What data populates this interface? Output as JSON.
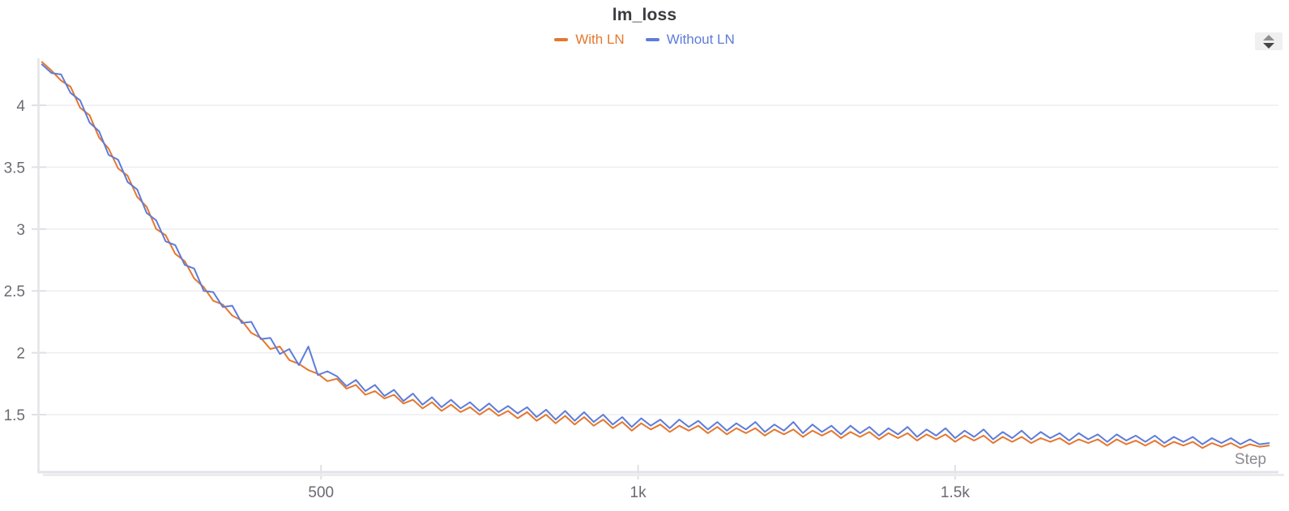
{
  "header": {
    "title": "lm_loss"
  },
  "legend": {
    "items": [
      {
        "label": "With LN",
        "color": "#e4772e"
      },
      {
        "label": "Without LN",
        "color": "#5e7cd9"
      }
    ]
  },
  "icons": {
    "stepper_up": "chevron-up",
    "stepper_down": "chevron-down"
  },
  "colors": {
    "background": "#ffffff",
    "grid": "#ededf0",
    "axis": "#e3e3e8",
    "axis_shadow": "#ececef",
    "tick_mark": "#e0e0e5",
    "tick_text": "#6a6a73",
    "title_text": "#3b3b40",
    "xlabel_text": "#8b8b92",
    "stepper_bg": "#f0f0f1",
    "stepper_up": "#8f8f8f",
    "stepper_down": "#454545"
  },
  "chart_data": {
    "type": "line",
    "title": "lm_loss",
    "xlabel": "Step",
    "ylabel": "",
    "grid": "horizontal",
    "legend_position": "top-center",
    "x_range": [
      55,
      2010
    ],
    "y_range": [
      1.035,
      4.38
    ],
    "x_ticks": [
      {
        "v": 500,
        "label": "500"
      },
      {
        "v": 1000,
        "label": "1k"
      },
      {
        "v": 1500,
        "label": "1.5k"
      }
    ],
    "y_ticks": [
      {
        "v": 1.5,
        "label": "1.5"
      },
      {
        "v": 2,
        "label": "2"
      },
      {
        "v": 2.5,
        "label": "2.5"
      },
      {
        "v": 3,
        "label": "3"
      },
      {
        "v": 3.5,
        "label": "3.5"
      },
      {
        "v": 4,
        "label": "4"
      }
    ],
    "x": [
      60,
      75,
      90,
      105,
      120,
      135,
      150,
      165,
      180,
      195,
      210,
      225,
      240,
      255,
      270,
      285,
      300,
      315,
      330,
      345,
      360,
      375,
      390,
      405,
      420,
      435,
      450,
      465,
      480,
      495,
      510,
      525,
      540,
      555,
      570,
      585,
      600,
      615,
      630,
      645,
      660,
      675,
      690,
      705,
      720,
      735,
      750,
      765,
      780,
      795,
      810,
      825,
      840,
      855,
      870,
      885,
      900,
      915,
      930,
      945,
      960,
      975,
      990,
      1005,
      1020,
      1035,
      1050,
      1065,
      1080,
      1095,
      1110,
      1125,
      1140,
      1155,
      1170,
      1185,
      1200,
      1215,
      1230,
      1245,
      1260,
      1275,
      1290,
      1305,
      1320,
      1335,
      1350,
      1365,
      1380,
      1395,
      1410,
      1425,
      1440,
      1455,
      1470,
      1485,
      1500,
      1515,
      1530,
      1545,
      1560,
      1575,
      1590,
      1605,
      1620,
      1635,
      1650,
      1665,
      1680,
      1695,
      1710,
      1725,
      1740,
      1755,
      1770,
      1785,
      1800,
      1815,
      1830,
      1845,
      1860,
      1875,
      1890,
      1905,
      1920,
      1935,
      1950,
      1965,
      1980,
      1995
    ],
    "series": [
      {
        "name": "With LN",
        "color": "#e4772e",
        "values": [
          4.35,
          4.28,
          4.2,
          4.15,
          3.98,
          3.92,
          3.74,
          3.65,
          3.49,
          3.43,
          3.26,
          3.18,
          3.0,
          2.95,
          2.8,
          2.74,
          2.6,
          2.53,
          2.42,
          2.39,
          2.3,
          2.26,
          2.16,
          2.12,
          2.03,
          2.05,
          1.94,
          1.91,
          1.86,
          1.83,
          1.77,
          1.79,
          1.71,
          1.74,
          1.66,
          1.69,
          1.63,
          1.66,
          1.59,
          1.62,
          1.55,
          1.6,
          1.53,
          1.58,
          1.52,
          1.56,
          1.5,
          1.55,
          1.49,
          1.53,
          1.47,
          1.52,
          1.45,
          1.5,
          1.43,
          1.49,
          1.42,
          1.48,
          1.41,
          1.46,
          1.39,
          1.44,
          1.37,
          1.43,
          1.38,
          1.42,
          1.36,
          1.41,
          1.37,
          1.41,
          1.35,
          1.4,
          1.34,
          1.39,
          1.35,
          1.39,
          1.33,
          1.38,
          1.34,
          1.38,
          1.32,
          1.37,
          1.33,
          1.37,
          1.31,
          1.36,
          1.32,
          1.36,
          1.3,
          1.35,
          1.31,
          1.35,
          1.29,
          1.34,
          1.3,
          1.34,
          1.28,
          1.33,
          1.29,
          1.33,
          1.27,
          1.32,
          1.28,
          1.32,
          1.27,
          1.31,
          1.28,
          1.31,
          1.26,
          1.3,
          1.27,
          1.3,
          1.25,
          1.3,
          1.26,
          1.29,
          1.25,
          1.29,
          1.24,
          1.28,
          1.25,
          1.28,
          1.23,
          1.27,
          1.24,
          1.27,
          1.23,
          1.26,
          1.24,
          1.25
        ]
      },
      {
        "name": "Without LN",
        "color": "#5e7cd9",
        "values": [
          4.33,
          4.26,
          4.25,
          4.1,
          4.04,
          3.86,
          3.79,
          3.6,
          3.56,
          3.38,
          3.32,
          3.13,
          3.07,
          2.9,
          2.87,
          2.71,
          2.68,
          2.5,
          2.49,
          2.37,
          2.38,
          2.24,
          2.25,
          2.11,
          2.12,
          1.99,
          2.03,
          1.9,
          2.05,
          1.82,
          1.85,
          1.81,
          1.73,
          1.78,
          1.69,
          1.74,
          1.65,
          1.7,
          1.61,
          1.67,
          1.58,
          1.64,
          1.56,
          1.62,
          1.55,
          1.6,
          1.53,
          1.59,
          1.52,
          1.57,
          1.51,
          1.56,
          1.48,
          1.54,
          1.46,
          1.53,
          1.45,
          1.52,
          1.44,
          1.5,
          1.42,
          1.48,
          1.4,
          1.47,
          1.41,
          1.46,
          1.39,
          1.46,
          1.4,
          1.45,
          1.38,
          1.44,
          1.37,
          1.43,
          1.38,
          1.44,
          1.36,
          1.42,
          1.37,
          1.44,
          1.35,
          1.42,
          1.36,
          1.41,
          1.34,
          1.41,
          1.35,
          1.4,
          1.33,
          1.39,
          1.34,
          1.4,
          1.32,
          1.38,
          1.33,
          1.39,
          1.31,
          1.37,
          1.32,
          1.38,
          1.3,
          1.36,
          1.31,
          1.37,
          1.3,
          1.36,
          1.31,
          1.35,
          1.29,
          1.35,
          1.3,
          1.34,
          1.28,
          1.34,
          1.29,
          1.33,
          1.28,
          1.33,
          1.27,
          1.32,
          1.28,
          1.32,
          1.26,
          1.31,
          1.27,
          1.31,
          1.26,
          1.3,
          1.26,
          1.27
        ]
      }
    ]
  }
}
